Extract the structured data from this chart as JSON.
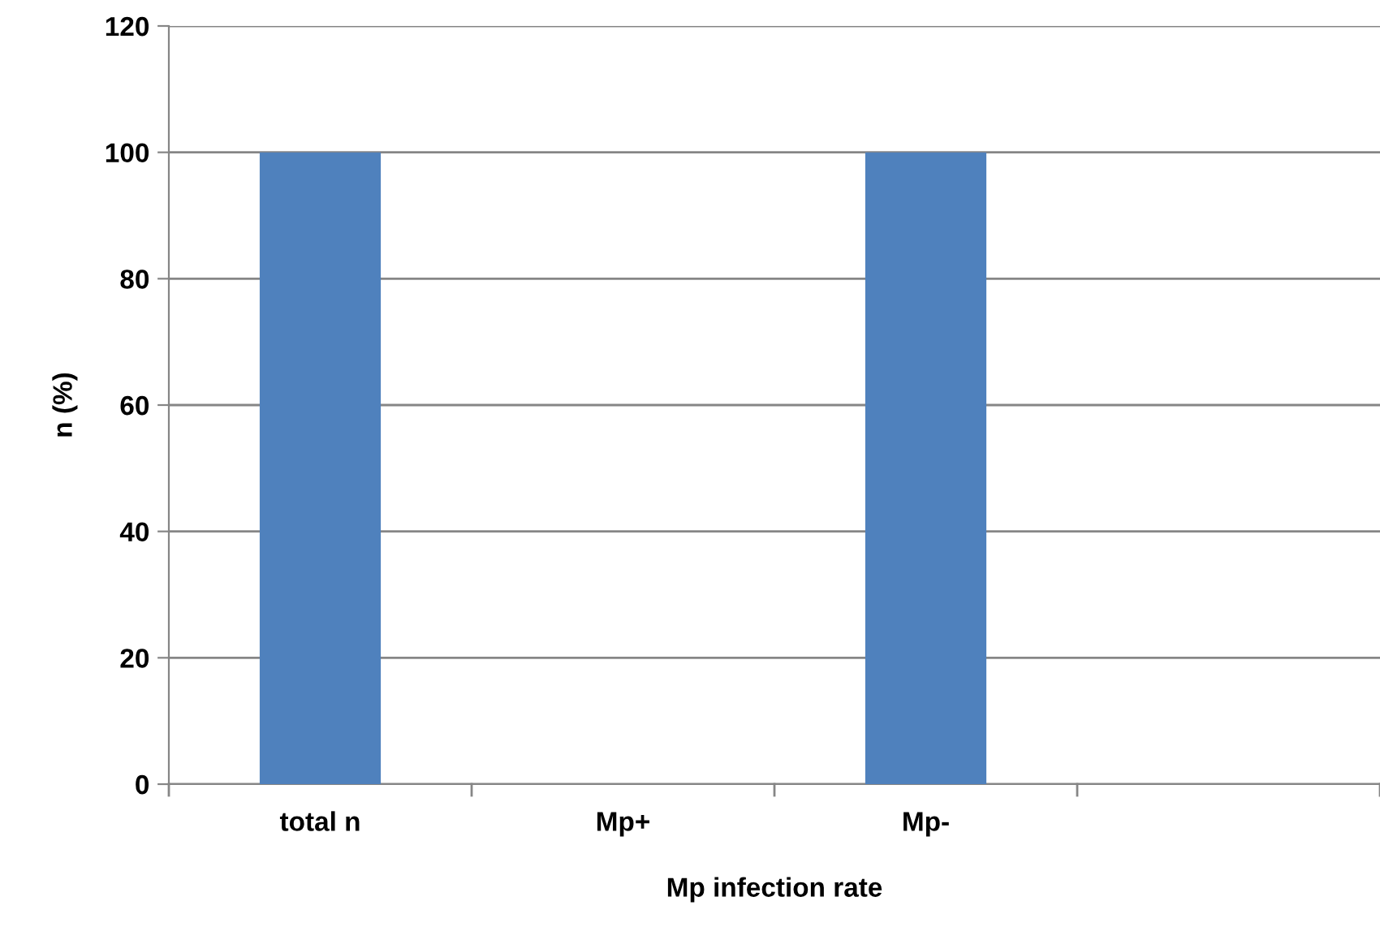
{
  "chart_data": {
    "type": "bar",
    "xlabel": "Mp infection rate",
    "ylabel": "n (%)",
    "categories": [
      "total n",
      "Mp+",
      "Mp-",
      null
    ],
    "values": [
      100,
      0,
      100,
      null
    ],
    "color": "#4f81bd",
    "ylim": [
      0,
      120
    ],
    "yticks": [
      0,
      20,
      40,
      60,
      80,
      100,
      120
    ],
    "grid": "y"
  }
}
